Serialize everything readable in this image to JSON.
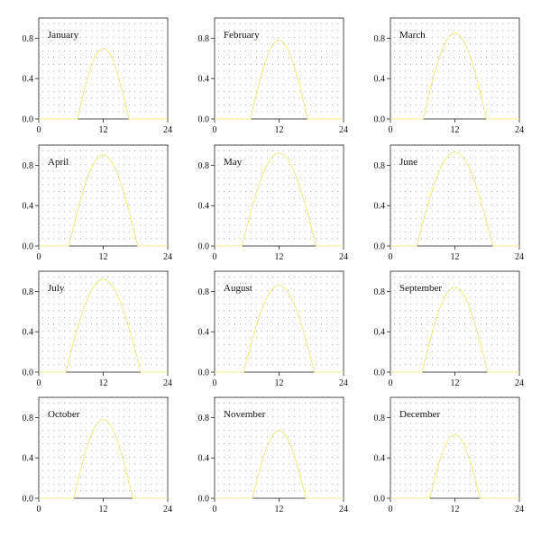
{
  "colors": {
    "curve": "#ecec8c",
    "dots": "#555555",
    "axis": "#222222"
  },
  "chart_data": {
    "type": "line",
    "layout": "small-multiples-4x3",
    "grid": true,
    "xlim": [
      0,
      24
    ],
    "ylim": [
      0,
      1.0
    ],
    "x_ticks": [
      0,
      12,
      24
    ],
    "y_ticks": [
      0.0,
      0.4,
      0.8
    ],
    "x_tick_labels": [
      "0",
      "12",
      "24"
    ],
    "y_tick_labels": [
      "0.0",
      "0.4",
      "0.8"
    ],
    "panels": [
      {
        "name": "January",
        "sunrise": 7.2,
        "sunset": 16.8,
        "peak": 0.7
      },
      {
        "name": "February",
        "sunrise": 6.7,
        "sunset": 17.3,
        "peak": 0.78
      },
      {
        "name": "March",
        "sunrise": 6.1,
        "sunset": 17.9,
        "peak": 0.85
      },
      {
        "name": "April",
        "sunrise": 5.6,
        "sunset": 18.4,
        "peak": 0.9
      },
      {
        "name": "May",
        "sunrise": 5.1,
        "sunset": 18.9,
        "peak": 0.92
      },
      {
        "name": "June",
        "sunrise": 4.9,
        "sunset": 19.1,
        "peak": 0.93
      },
      {
        "name": "July",
        "sunrise": 5.0,
        "sunset": 19.0,
        "peak": 0.92
      },
      {
        "name": "August",
        "sunrise": 5.4,
        "sunset": 18.6,
        "peak": 0.86
      },
      {
        "name": "September",
        "sunrise": 5.9,
        "sunset": 18.1,
        "peak": 0.84
      },
      {
        "name": "October",
        "sunrise": 6.5,
        "sunset": 17.5,
        "peak": 0.78
      },
      {
        "name": "November",
        "sunrise": 7.0,
        "sunset": 17.0,
        "peak": 0.67
      },
      {
        "name": "December",
        "sunrise": 7.3,
        "sunset": 16.7,
        "peak": 0.63
      }
    ]
  }
}
